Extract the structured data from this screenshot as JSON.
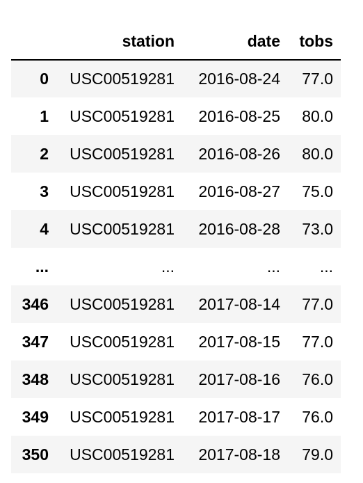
{
  "table": {
    "columns": [
      "station",
      "date",
      "tobs"
    ],
    "rows": [
      {
        "index": "0",
        "station": "USC00519281",
        "date": "2016-08-24",
        "tobs": "77.0"
      },
      {
        "index": "1",
        "station": "USC00519281",
        "date": "2016-08-25",
        "tobs": "80.0"
      },
      {
        "index": "2",
        "station": "USC00519281",
        "date": "2016-08-26",
        "tobs": "80.0"
      },
      {
        "index": "3",
        "station": "USC00519281",
        "date": "2016-08-27",
        "tobs": "75.0"
      },
      {
        "index": "4",
        "station": "USC00519281",
        "date": "2016-08-28",
        "tobs": "73.0"
      },
      {
        "index": "...",
        "station": "...",
        "date": "...",
        "tobs": "..."
      },
      {
        "index": "346",
        "station": "USC00519281",
        "date": "2017-08-14",
        "tobs": "77.0"
      },
      {
        "index": "347",
        "station": "USC00519281",
        "date": "2017-08-15",
        "tobs": "77.0"
      },
      {
        "index": "348",
        "station": "USC00519281",
        "date": "2017-08-16",
        "tobs": "76.0"
      },
      {
        "index": "349",
        "station": "USC00519281",
        "date": "2017-08-17",
        "tobs": "76.0"
      },
      {
        "index": "350",
        "station": "USC00519281",
        "date": "2017-08-18",
        "tobs": "79.0"
      }
    ]
  }
}
